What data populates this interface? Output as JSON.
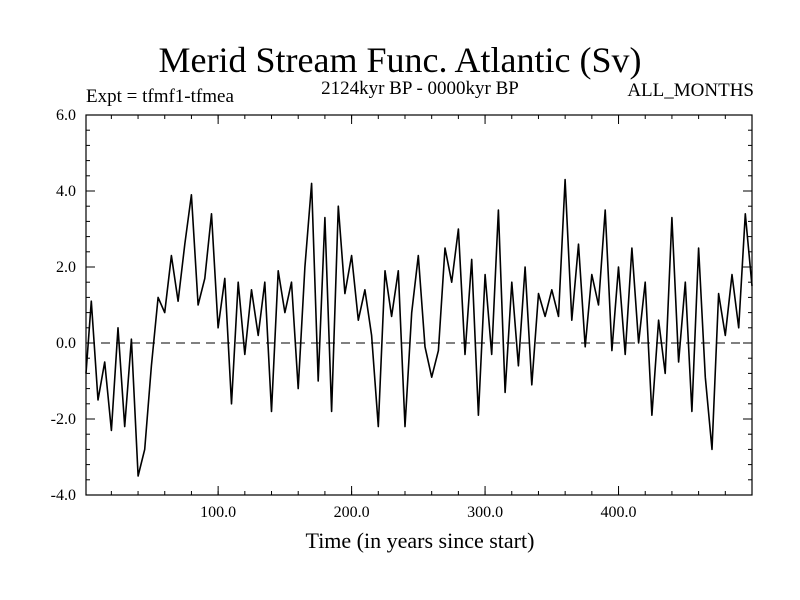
{
  "chart_data": {
    "type": "line",
    "title": "Merid Stream Func. Atlantic (Sv)",
    "subtitle_left": "Expt = tfmf1-tfmea",
    "subtitle_center": "2124kyr BP - 0000kyr BP",
    "subtitle_right": "ALL_MONTHS",
    "xlabel": "Time (in years since start)",
    "ylabel": "",
    "xlim": [
      1,
      500
    ],
    "ylim": [
      -4,
      6
    ],
    "xticks": [
      {
        "value": 100,
        "label": "100.0"
      },
      {
        "value": 200,
        "label": "200.0"
      },
      {
        "value": 300,
        "label": "300.0"
      },
      {
        "value": 400,
        "label": "400.0"
      }
    ],
    "yticks": [
      {
        "value": -4,
        "label": "-4.0"
      },
      {
        "value": -2,
        "label": "-2.0"
      },
      {
        "value": 0,
        "label": "0.0"
      },
      {
        "value": 2,
        "label": "2.0"
      },
      {
        "value": 4,
        "label": "4.0"
      },
      {
        "value": 6,
        "label": "6.0"
      }
    ],
    "zero_line": "dashed",
    "series": [
      {
        "name": "Merid Stream Func. Atlantic",
        "x": [
          1,
          5,
          10,
          15,
          20,
          25,
          30,
          35,
          40,
          45,
          50,
          55,
          60,
          65,
          70,
          75,
          80,
          85,
          90,
          95,
          100,
          105,
          110,
          115,
          120,
          125,
          130,
          135,
          140,
          145,
          150,
          155,
          160,
          165,
          170,
          175,
          180,
          185,
          190,
          195,
          200,
          205,
          210,
          215,
          220,
          225,
          230,
          235,
          240,
          245,
          250,
          255,
          260,
          265,
          270,
          275,
          280,
          285,
          290,
          295,
          300,
          305,
          310,
          315,
          320,
          325,
          330,
          335,
          340,
          345,
          350,
          355,
          360,
          365,
          370,
          375,
          380,
          385,
          390,
          395,
          400,
          405,
          410,
          415,
          420,
          425,
          430,
          435,
          440,
          445,
          450,
          455,
          460,
          465,
          470,
          475,
          480,
          485,
          490,
          495,
          500
        ],
        "values": [
          -0.8,
          1.1,
          -1.5,
          -0.5,
          -2.3,
          0.4,
          -2.2,
          0.1,
          -3.5,
          -2.8,
          -0.6,
          1.2,
          0.8,
          2.3,
          1.1,
          2.6,
          3.9,
          1.0,
          1.7,
          3.4,
          0.4,
          1.7,
          -1.6,
          1.6,
          -0.3,
          1.4,
          0.2,
          1.6,
          -1.8,
          1.9,
          0.8,
          1.6,
          -1.2,
          2.0,
          4.2,
          -1.0,
          3.3,
          -1.8,
          3.6,
          1.3,
          2.3,
          0.6,
          1.4,
          0.2,
          -2.2,
          1.9,
          0.7,
          1.9,
          -2.2,
          0.8,
          2.3,
          -0.1,
          -0.9,
          -0.2,
          2.5,
          1.6,
          3.0,
          -0.3,
          2.2,
          -1.9,
          1.8,
          -0.3,
          3.5,
          -1.3,
          1.6,
          -0.6,
          2.0,
          -1.1,
          1.3,
          0.7,
          1.4,
          0.7,
          4.3,
          0.6,
          2.6,
          -0.1,
          1.8,
          1.0,
          3.5,
          -0.2,
          2.0,
          -0.3,
          2.5,
          0.0,
          1.6,
          -1.9,
          0.6,
          -0.8,
          3.3,
          -0.5,
          1.6,
          -1.8,
          2.5,
          -0.9,
          -2.8,
          1.3,
          0.2,
          1.8,
          0.4,
          3.4,
          1.5
        ]
      }
    ]
  }
}
